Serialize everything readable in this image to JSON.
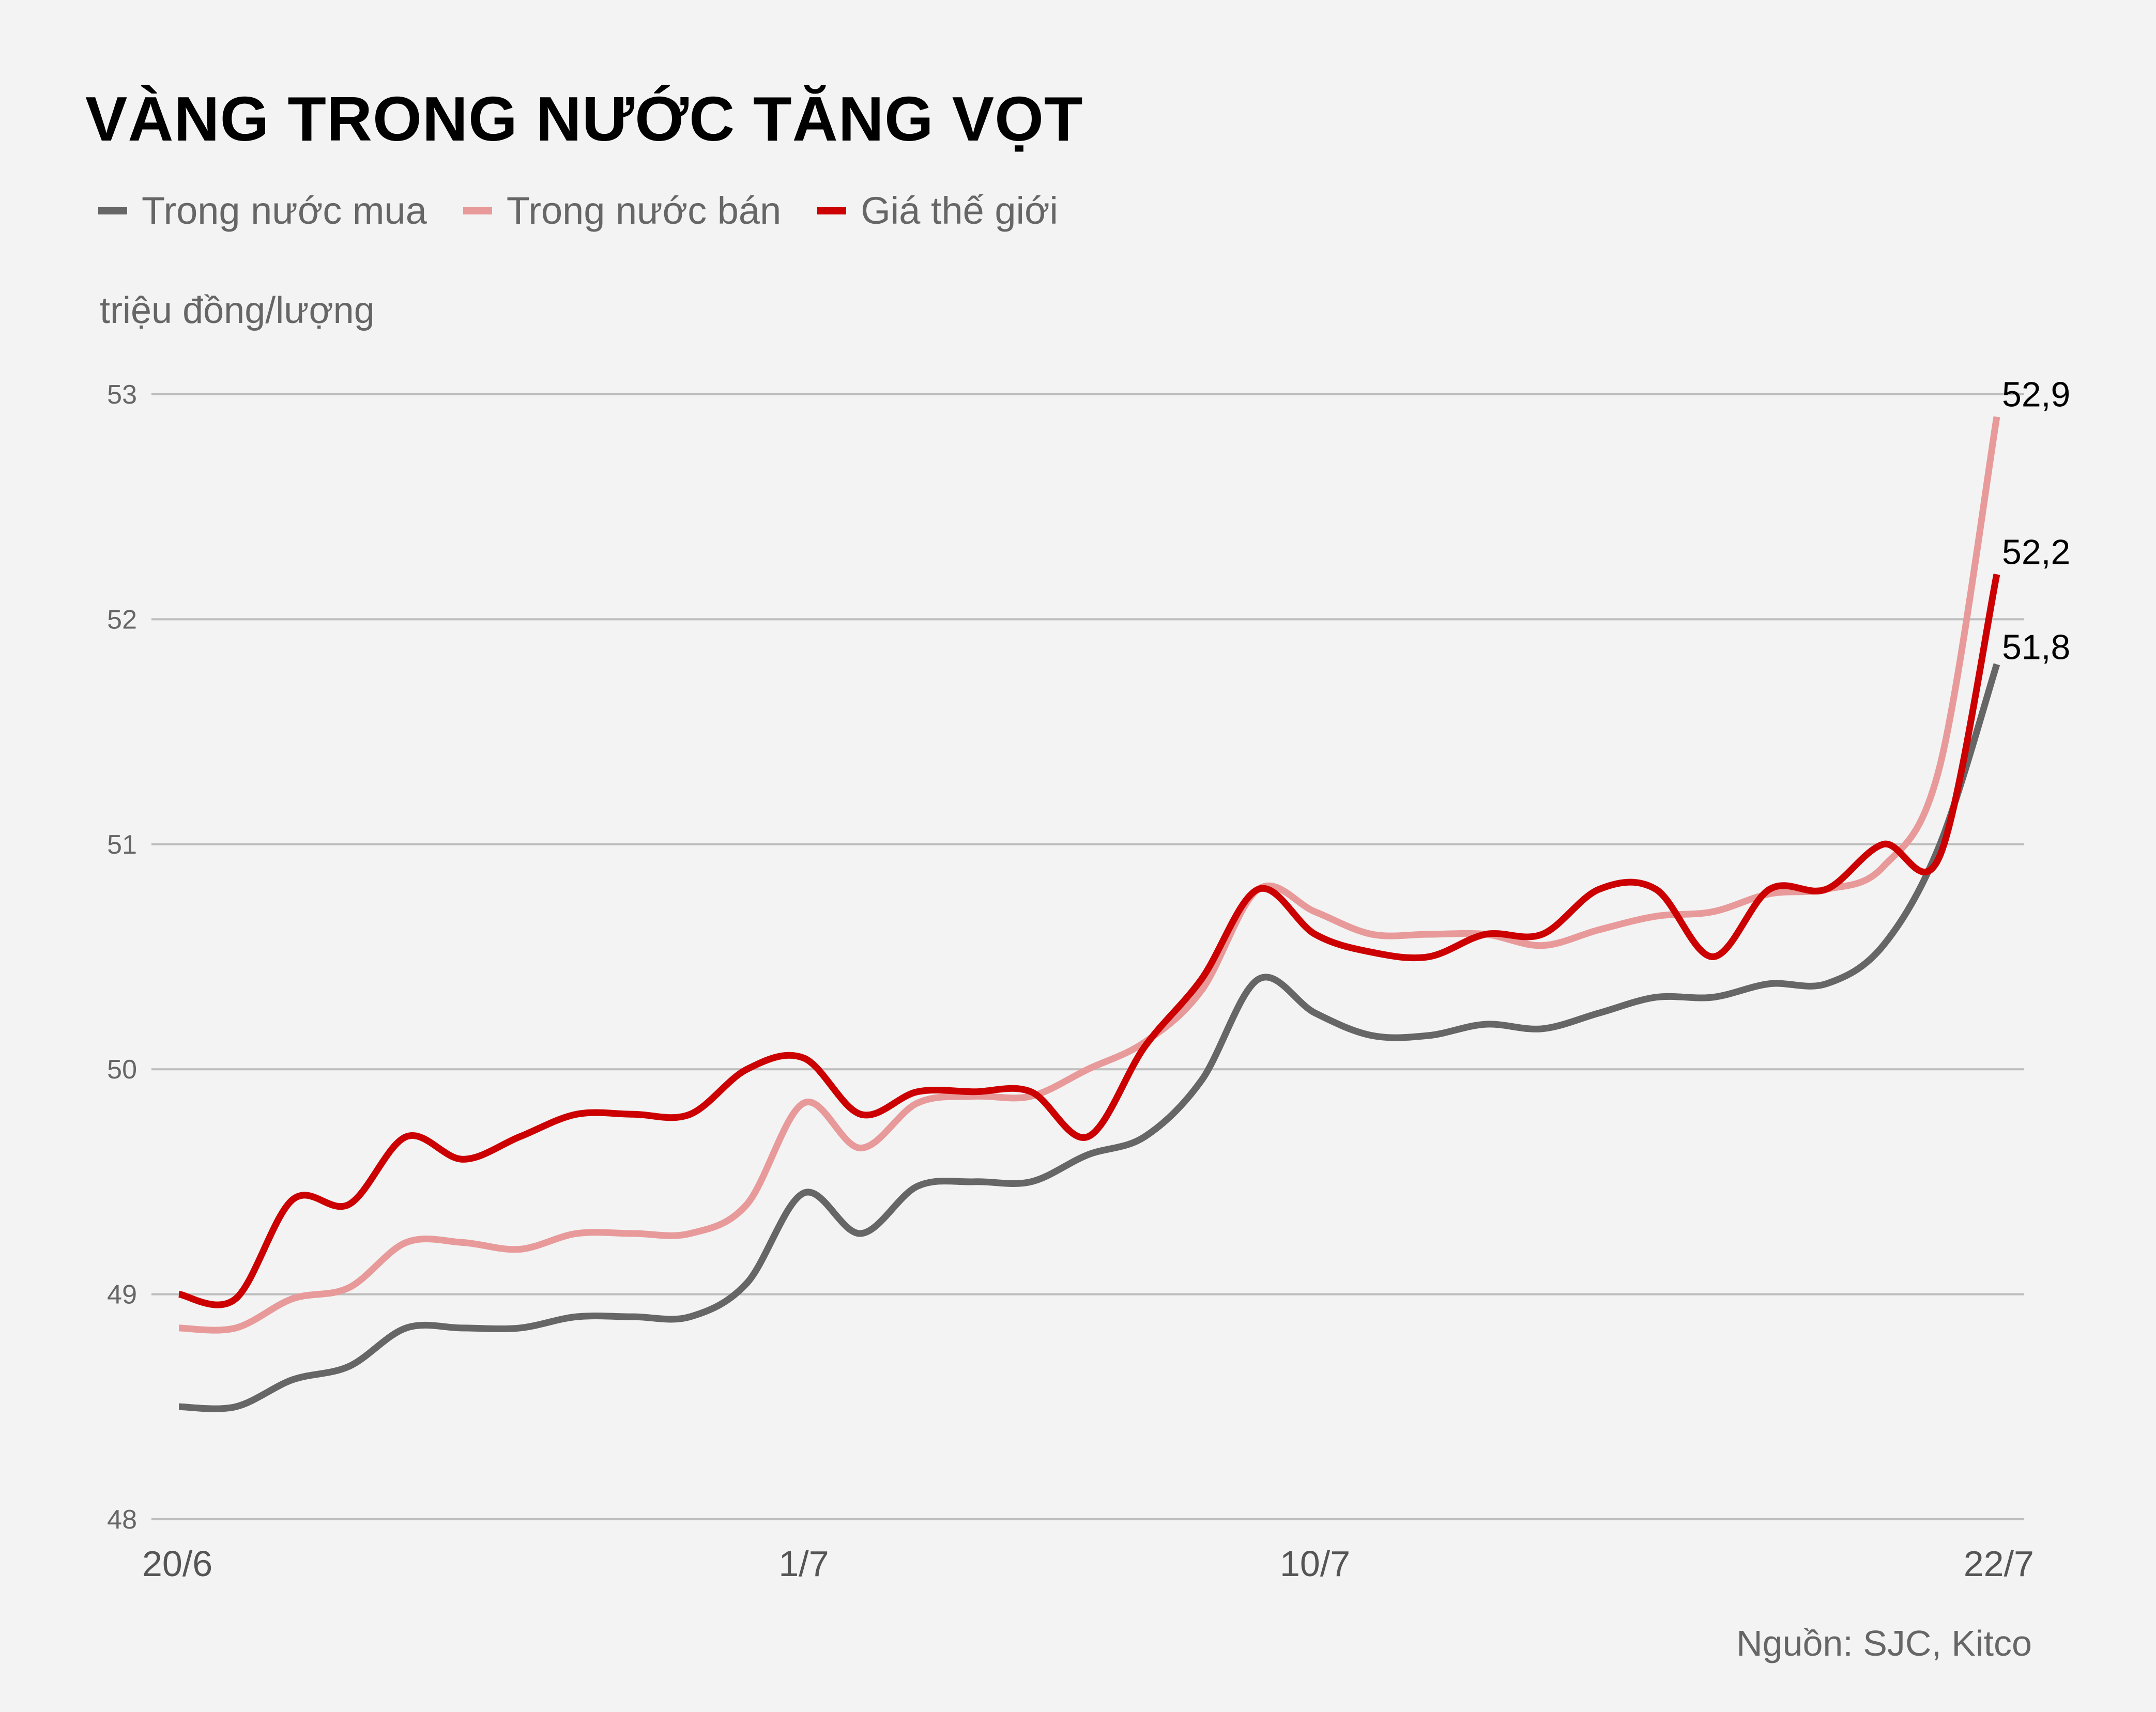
{
  "title": "VÀNG TRONG NƯỚC TĂNG VỌT",
  "unit_label": "triệu đồng/lượng",
  "source": "Nguồn: SJC, Kitco",
  "chart_data": {
    "type": "line",
    "title": "VÀNG TRONG NƯỚC TĂNG VỌT",
    "ylabel": "triệu đồng/lượng",
    "xlabel": "",
    "ylim": [
      48,
      53
    ],
    "yticks": [
      "48",
      "49",
      "50",
      "51",
      "52",
      "53"
    ],
    "xtick_labels": [
      {
        "day_index": 0,
        "label": "20/6"
      },
      {
        "day_index": 11,
        "label": "1/7"
      },
      {
        "day_index": 20,
        "label": "10/7"
      },
      {
        "day_index": 32,
        "label": "22/7"
      }
    ],
    "x": [
      "20/6",
      "21/6",
      "22/6",
      "23/6",
      "24/6",
      "25/6",
      "26/6",
      "27/6",
      "28/6",
      "29/6",
      "30/6",
      "1/7",
      "2/7",
      "3/7",
      "4/7",
      "5/7",
      "6/7",
      "7/7",
      "8/7",
      "9/7",
      "10/7",
      "11/7",
      "12/7",
      "13/7",
      "14/7",
      "15/7",
      "16/7",
      "17/7",
      "18/7",
      "19/7",
      "20/7",
      "21/7",
      "22/7"
    ],
    "grid": "horizontal",
    "legend": "top-left",
    "series": [
      {
        "name": "Trong nước mua",
        "color": "#666666",
        "end_label": "51,8",
        "values": [
          48.5,
          48.5,
          48.62,
          48.68,
          48.85,
          48.85,
          48.85,
          48.9,
          48.9,
          48.9,
          49.05,
          49.45,
          49.27,
          49.48,
          49.5,
          49.5,
          49.62,
          49.7,
          49.95,
          50.4,
          50.25,
          50.15,
          50.15,
          50.2,
          50.18,
          50.25,
          50.32,
          50.32,
          50.38,
          50.38,
          50.55,
          51.0,
          51.8
        ]
      },
      {
        "name": "Trong nước bán",
        "color": "#e89a9a",
        "end_label": "52,9",
        "values": [
          48.85,
          48.85,
          48.98,
          49.03,
          49.23,
          49.23,
          49.2,
          49.27,
          49.27,
          49.27,
          49.4,
          49.85,
          49.65,
          49.85,
          49.88,
          49.88,
          50.0,
          50.12,
          50.35,
          50.8,
          50.7,
          50.6,
          50.6,
          50.6,
          50.55,
          50.62,
          50.68,
          50.7,
          50.78,
          50.8,
          50.9,
          51.35,
          52.9
        ]
      },
      {
        "name": "Giá thế giới",
        "color": "#cc0000",
        "end_label": "52,2",
        "values": [
          49.0,
          48.98,
          49.42,
          49.4,
          49.7,
          49.6,
          49.7,
          49.8,
          49.8,
          49.8,
          50.0,
          50.05,
          49.8,
          49.9,
          49.9,
          49.9,
          49.7,
          50.1,
          50.4,
          50.8,
          50.6,
          50.52,
          50.5,
          50.6,
          50.6,
          50.8,
          50.8,
          50.5,
          50.8,
          50.8,
          51.0,
          50.95,
          52.2
        ]
      }
    ]
  }
}
